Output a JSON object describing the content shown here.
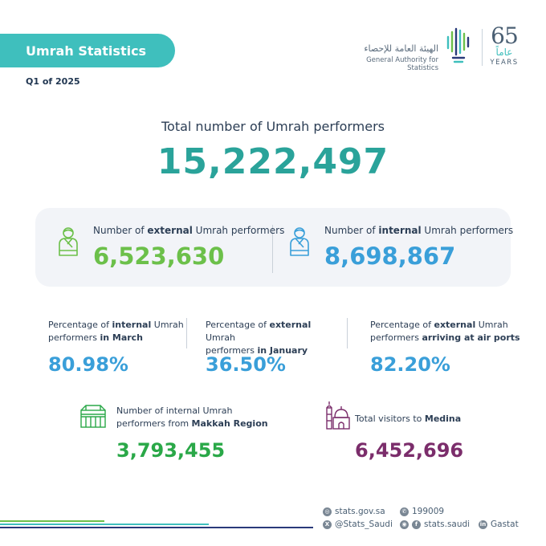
{
  "header": {
    "title": "Umrah Statistics",
    "period": "Q1 of 2025"
  },
  "logo": {
    "name_ar": "الهيئة العامة للإحصاء",
    "name_en": "General Authority for Statistics",
    "anniversary_number": "65",
    "anniversary_ar": "عاماً",
    "anniversary_en": "YEARS"
  },
  "total": {
    "label": "Total number of Umrah performers",
    "value": "15,222,497"
  },
  "card": {
    "external": {
      "label_pre": "Number of ",
      "label_bold": "external",
      "label_post": " Umrah performers",
      "value": "6,523,630",
      "icon": "pilgrim-icon"
    },
    "internal": {
      "label_pre": "Number of ",
      "label_bold": "internal",
      "label_post": " Umrah performers",
      "value": "8,698,867",
      "icon": "pilgrim-icon"
    }
  },
  "percentages": [
    {
      "l1_pre": "Percentage of ",
      "l1_bold": "internal",
      "l1_post": " Umrah",
      "l2_pre": "performers ",
      "l2_bold": "in March",
      "value": "80.98%"
    },
    {
      "l1_pre": "Percentage of ",
      "l1_bold": "external",
      "l1_post": " Umrah",
      "l2_pre": "performers ",
      "l2_bold": "in January",
      "value": "36.50%"
    },
    {
      "l1_pre": "Percentage of ",
      "l1_bold": "external",
      "l1_post": " Umrah",
      "l2_pre": "performers ",
      "l2_bold": "arriving at air ports",
      "value": "82.20%"
    }
  ],
  "makkah": {
    "line1": "Number of internal Umrah",
    "line2_pre": "performers from ",
    "line2_bold": "Makkah Region",
    "value": "3,793,455",
    "icon": "kaaba-icon"
  },
  "medina": {
    "label_pre": "Total visitors to ",
    "label_bold": "Medina",
    "value": "6,452,696",
    "icon": "mosque-icon"
  },
  "footer": {
    "website": "stats.gov.sa",
    "phone": "199009",
    "x_handle": "@Stats_Saudi",
    "facebook": "stats.saudi",
    "linkedin": "Gastat"
  },
  "colors": {
    "teal": "#3fbfbd",
    "green": "#6cc04a",
    "blue": "#3a9fd9",
    "purple": "#7b2d6b"
  }
}
